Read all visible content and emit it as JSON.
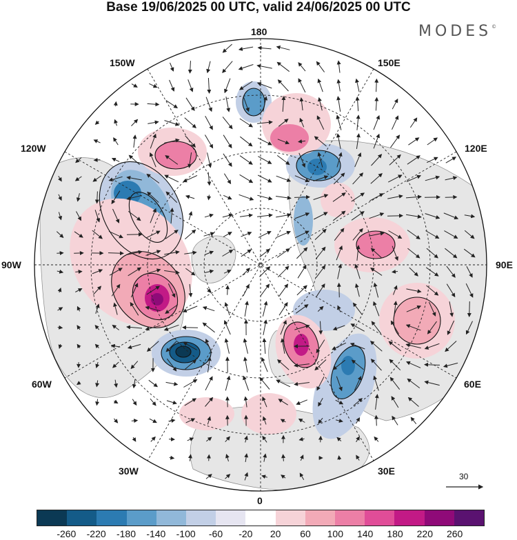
{
  "title": "Base 19/06/2025 00 UTC, valid 24/06/2025 00 UTC",
  "brand": "MODES",
  "brand_mark": "©",
  "map_labels": {
    "top": "180",
    "bottom": "0",
    "left": "90W",
    "right": "90E",
    "w150": "150W",
    "e150": "150E",
    "w120": "120W",
    "e120": "120E",
    "w60": "60W",
    "e60": "60E",
    "w30": "30W",
    "e30": "30E"
  },
  "reference_vector": "30",
  "colorbar": {
    "ticks": [
      "-260",
      "-220",
      "-180",
      "-140",
      "-100",
      "-60",
      "-20",
      "20",
      "60",
      "100",
      "140",
      "180",
      "220",
      "260"
    ],
    "colors": [
      "#0b3954",
      "#145b88",
      "#2c7bb2",
      "#5b9cc9",
      "#91b8d9",
      "#c2cfe6",
      "#e6e5f1",
      "#ffffff",
      "#f6d3d8",
      "#f2aab7",
      "#ec7fa6",
      "#e04d98",
      "#c21a86",
      "#8f0a78",
      "#5a1270"
    ]
  },
  "colors": {
    "negative": "#2c7bb2",
    "positive": "#e04d98",
    "land": "#e8e8e8"
  }
}
